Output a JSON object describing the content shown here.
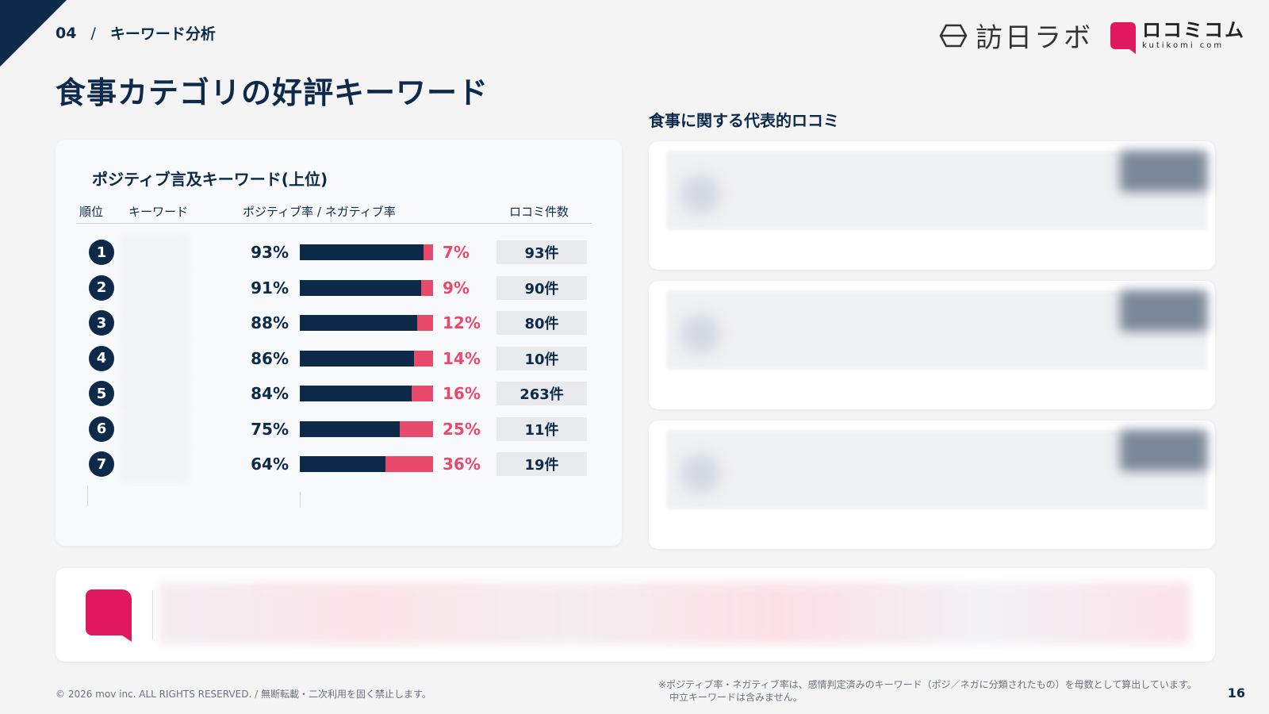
{
  "header": {
    "section_number": "04",
    "separator": "/",
    "section_title": "キーワード分析",
    "page_title": "食事カテゴリの好評キーワード"
  },
  "logos": {
    "logo1_text": "訪日ラボ",
    "logo2_text": "ロコミコム",
    "logo2_sub": "kutikomi com"
  },
  "left_panel": {
    "title": "ポジティブ言及キーワード(上位)",
    "headers": {
      "rank": "順位",
      "keyword": "キーワード",
      "ratio": "ポジティブ率 / ネガティブ率",
      "count": "ロコミ件数"
    },
    "rows": [
      {
        "rank": "1",
        "positive": "93%",
        "negative": "7%",
        "pos_value": 93,
        "count": "93件"
      },
      {
        "rank": "2",
        "positive": "91%",
        "negative": "9%",
        "pos_value": 91,
        "count": "90件"
      },
      {
        "rank": "3",
        "positive": "88%",
        "negative": "12%",
        "pos_value": 88,
        "count": "80件"
      },
      {
        "rank": "4",
        "positive": "86%",
        "negative": "14%",
        "pos_value": 86,
        "count": "10件"
      },
      {
        "rank": "5",
        "positive": "84%",
        "negative": "16%",
        "pos_value": 84,
        "count": "263件"
      },
      {
        "rank": "6",
        "positive": "75%",
        "negative": "25%",
        "pos_value": 75,
        "count": "11件"
      },
      {
        "rank": "7",
        "positive": "64%",
        "negative": "36%",
        "pos_value": 64,
        "count": "19件"
      }
    ]
  },
  "right_panel": {
    "title": "食事に関する代表的ロコミ"
  },
  "footer": {
    "copyright": "© 2026 mov inc. ALL RIGHTS RESERVED. / 無断転載・二次利用を固く禁止します。",
    "note_line1": "※ポジティブ率・ネガティブ率は、感情判定済みのキーワード（ポジ／ネガに分類されたもの）を母数として算出しています。",
    "note_line2": "中立キーワードは含みません。",
    "page_number": "16"
  },
  "colors": {
    "navy": "#0d2a4a",
    "negative": "#e84a6c",
    "brand_pink": "#e0195e"
  }
}
